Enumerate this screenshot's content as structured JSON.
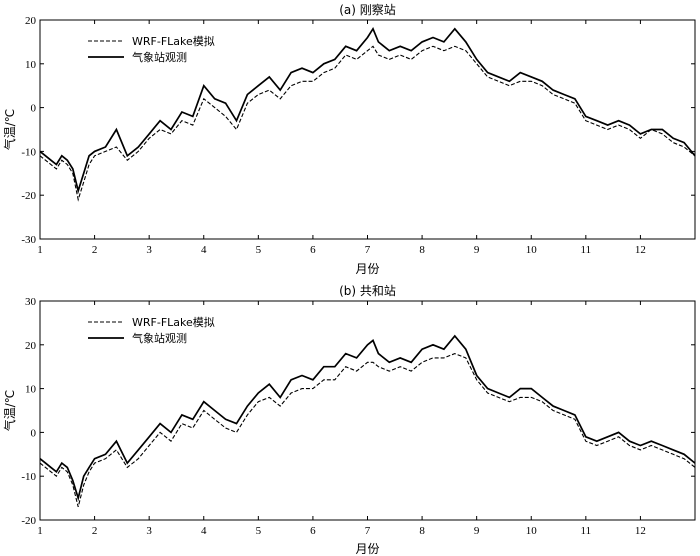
{
  "chart_data": [
    {
      "type": "line",
      "title": "(a) 刚察站",
      "xlabel": "月份",
      "ylabel": "气温/℃",
      "xlim": [
        1,
        13
      ],
      "ylim": [
        -30,
        20
      ],
      "xticks": [
        1,
        2,
        3,
        4,
        5,
        6,
        7,
        8,
        9,
        10,
        11,
        12
      ],
      "yticks": [
        -30,
        -20,
        -10,
        0,
        10,
        20
      ],
      "legend_position": "top-left",
      "series": [
        {
          "name": "WRF-FLake模拟",
          "style": "dashed",
          "x": [
            1.0,
            1.1,
            1.2,
            1.3,
            1.4,
            1.5,
            1.6,
            1.7,
            1.8,
            1.9,
            2.0,
            2.2,
            2.4,
            2.6,
            2.8,
            3.0,
            3.2,
            3.4,
            3.6,
            3.8,
            4.0,
            4.2,
            4.4,
            4.6,
            4.8,
            5.0,
            5.2,
            5.4,
            5.6,
            5.8,
            6.0,
            6.2,
            6.4,
            6.6,
            6.8,
            7.0,
            7.1,
            7.2,
            7.4,
            7.6,
            7.8,
            8.0,
            8.2,
            8.4,
            8.6,
            8.8,
            9.0,
            9.2,
            9.4,
            9.6,
            9.8,
            10.0,
            10.2,
            10.4,
            10.6,
            10.8,
            11.0,
            11.2,
            11.4,
            11.6,
            11.8,
            12.0,
            12.2,
            12.4,
            12.6,
            12.8,
            13.0
          ],
          "y": [
            -11,
            -12,
            -13,
            -14,
            -12,
            -13,
            -15,
            -21,
            -17,
            -13,
            -11,
            -10,
            -9,
            -12,
            -10,
            -7,
            -5,
            -6,
            -3,
            -4,
            2,
            0,
            -2,
            -5,
            1,
            3,
            4,
            2,
            5,
            6,
            6,
            8,
            9,
            12,
            11,
            13,
            14,
            12,
            11,
            12,
            11,
            13,
            14,
            13,
            14,
            13,
            10,
            7,
            6,
            5,
            6,
            6,
            5,
            3,
            2,
            1,
            -3,
            -4,
            -5,
            -4,
            -5,
            -7,
            -5,
            -6,
            -8,
            -9,
            -11
          ]
        },
        {
          "name": "气象站观测",
          "style": "solid",
          "x": [
            1.0,
            1.1,
            1.2,
            1.3,
            1.4,
            1.5,
            1.6,
            1.7,
            1.8,
            1.9,
            2.0,
            2.2,
            2.4,
            2.6,
            2.8,
            3.0,
            3.2,
            3.4,
            3.6,
            3.8,
            4.0,
            4.2,
            4.4,
            4.6,
            4.8,
            5.0,
            5.2,
            5.4,
            5.6,
            5.8,
            6.0,
            6.2,
            6.4,
            6.6,
            6.8,
            7.0,
            7.1,
            7.2,
            7.4,
            7.6,
            7.8,
            8.0,
            8.2,
            8.4,
            8.6,
            8.8,
            9.0,
            9.2,
            9.4,
            9.6,
            9.8,
            10.0,
            10.2,
            10.4,
            10.6,
            10.8,
            11.0,
            11.2,
            11.4,
            11.6,
            11.8,
            12.0,
            12.2,
            12.4,
            12.6,
            12.8,
            13.0
          ],
          "y": [
            -10,
            -11,
            -12,
            -13,
            -11,
            -12,
            -14,
            -19,
            -15,
            -11,
            -10,
            -9,
            -5,
            -11,
            -9,
            -6,
            -3,
            -5,
            -1,
            -2,
            5,
            2,
            1,
            -3,
            3,
            5,
            7,
            4,
            8,
            9,
            8,
            10,
            11,
            14,
            13,
            16,
            18,
            15,
            13,
            14,
            13,
            15,
            16,
            15,
            18,
            15,
            11,
            8,
            7,
            6,
            8,
            7,
            6,
            4,
            3,
            2,
            -2,
            -3,
            -4,
            -3,
            -4,
            -6,
            -5,
            -5,
            -7,
            -8,
            -11
          ]
        }
      ]
    },
    {
      "type": "line",
      "title": "(b) 共和站",
      "xlabel": "月份",
      "ylabel": "气温/℃",
      "xlim": [
        1,
        13
      ],
      "ylim": [
        -20,
        30
      ],
      "xticks": [
        1,
        2,
        3,
        4,
        5,
        6,
        7,
        8,
        9,
        10,
        11,
        12
      ],
      "yticks": [
        -20,
        -10,
        0,
        10,
        20,
        30
      ],
      "legend_position": "top-left",
      "series": [
        {
          "name": "WRF-FLake模拟",
          "style": "dashed",
          "x": [
            1.0,
            1.1,
            1.2,
            1.3,
            1.4,
            1.5,
            1.6,
            1.7,
            1.8,
            1.9,
            2.0,
            2.2,
            2.4,
            2.6,
            2.8,
            3.0,
            3.2,
            3.4,
            3.6,
            3.8,
            4.0,
            4.2,
            4.4,
            4.6,
            4.8,
            5.0,
            5.2,
            5.4,
            5.6,
            5.8,
            6.0,
            6.2,
            6.4,
            6.6,
            6.8,
            7.0,
            7.1,
            7.2,
            7.4,
            7.6,
            7.8,
            8.0,
            8.2,
            8.4,
            8.6,
            8.8,
            9.0,
            9.2,
            9.4,
            9.6,
            9.8,
            10.0,
            10.2,
            10.4,
            10.6,
            10.8,
            11.0,
            11.2,
            11.4,
            11.6,
            11.8,
            12.0,
            12.2,
            12.4,
            12.6,
            12.8,
            13.0
          ],
          "y": [
            -7,
            -8,
            -9,
            -10,
            -8,
            -9,
            -12,
            -17,
            -12,
            -9,
            -7,
            -6,
            -4,
            -8,
            -6,
            -3,
            0,
            -2,
            2,
            1,
            5,
            3,
            1,
            0,
            4,
            7,
            8,
            6,
            9,
            10,
            10,
            12,
            12,
            15,
            14,
            16,
            16,
            15,
            14,
            15,
            14,
            16,
            17,
            17,
            18,
            17,
            12,
            9,
            8,
            7,
            8,
            8,
            7,
            5,
            4,
            3,
            -2,
            -3,
            -2,
            -1,
            -3,
            -4,
            -3,
            -4,
            -5,
            -6,
            -8
          ]
        },
        {
          "name": "气象站观测",
          "style": "solid",
          "x": [
            1.0,
            1.1,
            1.2,
            1.3,
            1.4,
            1.5,
            1.6,
            1.7,
            1.8,
            1.9,
            2.0,
            2.2,
            2.4,
            2.6,
            2.8,
            3.0,
            3.2,
            3.4,
            3.6,
            3.8,
            4.0,
            4.2,
            4.4,
            4.6,
            4.8,
            5.0,
            5.2,
            5.4,
            5.6,
            5.8,
            6.0,
            6.2,
            6.4,
            6.6,
            6.8,
            7.0,
            7.1,
            7.2,
            7.4,
            7.6,
            7.8,
            8.0,
            8.2,
            8.4,
            8.6,
            8.8,
            9.0,
            9.2,
            9.4,
            9.6,
            9.8,
            10.0,
            10.2,
            10.4,
            10.6,
            10.8,
            11.0,
            11.2,
            11.4,
            11.6,
            11.8,
            12.0,
            12.2,
            12.4,
            12.6,
            12.8,
            13.0
          ],
          "y": [
            -6,
            -7,
            -8,
            -9,
            -7,
            -8,
            -11,
            -15,
            -10,
            -8,
            -6,
            -5,
            -2,
            -7,
            -4,
            -1,
            2,
            0,
            4,
            3,
            7,
            5,
            3,
            2,
            6,
            9,
            11,
            8,
            12,
            13,
            12,
            15,
            15,
            18,
            17,
            20,
            21,
            18,
            16,
            17,
            16,
            19,
            20,
            19,
            22,
            19,
            13,
            10,
            9,
            8,
            10,
            10,
            8,
            6,
            5,
            4,
            -1,
            -2,
            -1,
            0,
            -2,
            -3,
            -2,
            -3,
            -4,
            -5,
            -7
          ]
        }
      ]
    }
  ]
}
